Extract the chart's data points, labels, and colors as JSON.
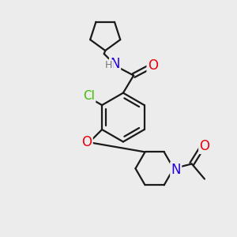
{
  "background_color": "#ececec",
  "bond_color": "#1a1a1a",
  "atom_colors": {
    "O": "#e8000e",
    "N": "#2400d9",
    "Cl": "#3dba00",
    "H": "#777777",
    "C": "#1a1a1a"
  },
  "figsize": [
    3.0,
    3.0
  ],
  "dpi": 100,
  "lw": 1.6,
  "fontsize": 11
}
